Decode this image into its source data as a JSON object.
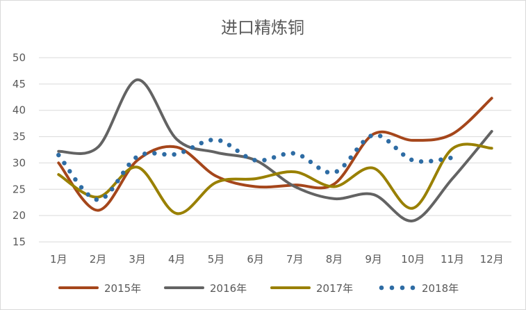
{
  "chart_data": {
    "type": "line",
    "title": "进口精炼铜",
    "xlabel": "",
    "ylabel": "",
    "categories": [
      "1月",
      "2月",
      "3月",
      "4月",
      "5月",
      "6月",
      "7月",
      "8月",
      "9月",
      "10月",
      "11月",
      "12月"
    ],
    "ylim": [
      15,
      50
    ],
    "yticks": [
      15,
      20,
      25,
      30,
      35,
      40,
      45,
      50
    ],
    "grid": "horizontal",
    "legend_position": "bottom",
    "series": [
      {
        "name": "2015年",
        "color": "#a5461b",
        "style": "solid",
        "values": [
          30.0,
          21.0,
          30.5,
          33.0,
          27.5,
          25.5,
          25.8,
          26.0,
          35.5,
          34.3,
          35.5,
          42.3
        ]
      },
      {
        "name": "2016年",
        "color": "#636363",
        "style": "solid",
        "values": [
          32.2,
          33.0,
          45.8,
          34.5,
          32.0,
          30.5,
          25.5,
          23.2,
          24.0,
          19.0,
          27.0,
          36.0
        ]
      },
      {
        "name": "2017年",
        "color": "#998000",
        "style": "solid",
        "values": [
          27.8,
          23.5,
          29.2,
          20.4,
          26.3,
          27.0,
          28.3,
          25.5,
          29.0,
          21.4,
          32.7,
          32.8
        ]
      },
      {
        "name": "2018年",
        "color": "#2e6ca4",
        "style": "dotted",
        "values": [
          31.5,
          23.0,
          31.2,
          31.7,
          34.4,
          30.5,
          31.8,
          28.2,
          35.3,
          30.5,
          31.0,
          null
        ]
      }
    ]
  }
}
